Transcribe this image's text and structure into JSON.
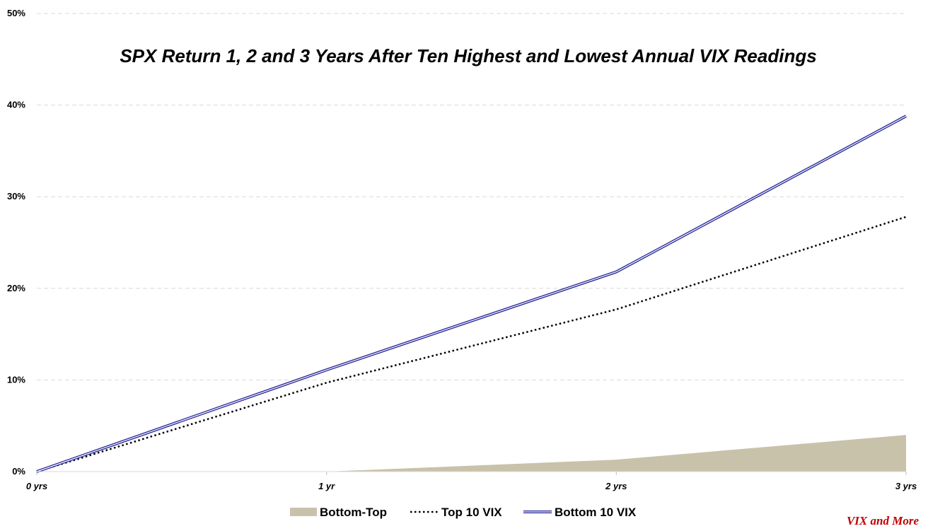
{
  "chart_data": {
    "type": "line",
    "title": "SPX Return 1, 2 and 3 Years After Ten Highest and Lowest Annual VIX Readings",
    "categories": [
      "0 yrs",
      "1 yr",
      "2 yrs",
      "3 yrs"
    ],
    "x_labels": [
      "0 yrs",
      "1 yr",
      "2 yrs",
      "3 yrs"
    ],
    "y_ticks": [
      "0%",
      "10%",
      "20%",
      "30%",
      "40%",
      "50%"
    ],
    "ylim": [
      0,
      0.5
    ],
    "xlabel": "",
    "ylabel": "",
    "grid": true,
    "legend_position": "bottom",
    "series": [
      {
        "name": "Bottom-Top",
        "kind": "area",
        "color": "#c8c2aa",
        "values": [
          null,
          0.0,
          0.013,
          0.04
        ]
      },
      {
        "name": "Top 10 VIX",
        "kind": "dotted-line",
        "color": "#000000",
        "values": [
          0.0,
          0.097,
          0.177,
          0.278
        ]
      },
      {
        "name": "Bottom 10 VIX",
        "kind": "double-line",
        "color": "#2d2d9e",
        "values": [
          0.0,
          0.111,
          0.218,
          0.388
        ]
      }
    ]
  },
  "legend": {
    "items": [
      "Bottom-Top",
      "Top 10 VIX",
      "Bottom 10 VIX"
    ]
  },
  "watermark": "VIX and More",
  "colors": {
    "area": "#c8c2aa",
    "dotted": "#000000",
    "double_outer": "#2d2d9e",
    "grid": "#d9d9d9",
    "watermark": "#c00000"
  }
}
